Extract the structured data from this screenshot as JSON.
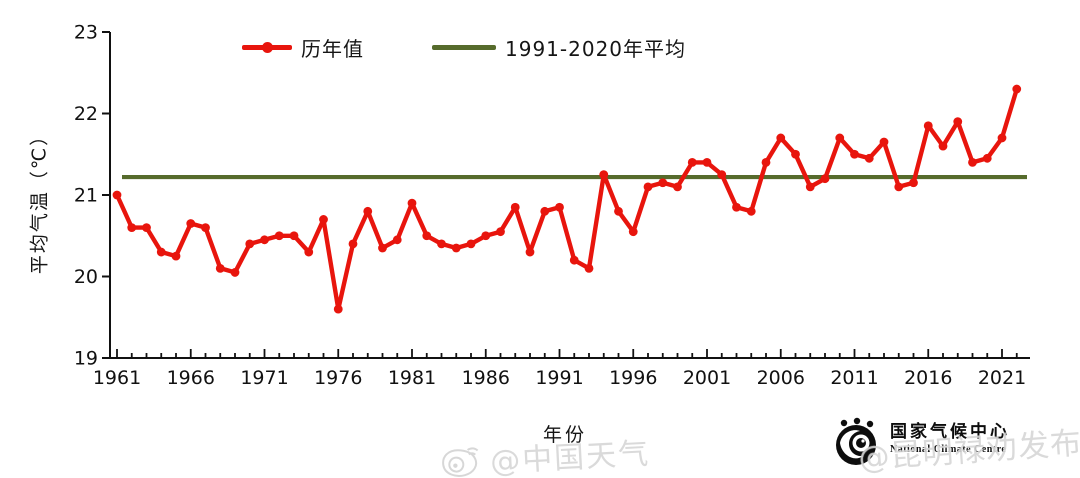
{
  "colors": {
    "red": "#e8150d",
    "green": "#566b2c",
    "axis": "#111111"
  },
  "legend": {
    "series_label": "历年值",
    "ref_label": "1991-2020年平均"
  },
  "watermarks": {
    "center": "@中国天气",
    "right_overlay": "@昆明禄劝发布"
  },
  "branding": {
    "org_cn": "国家气候中心",
    "org_en": "National Climate Centre"
  },
  "chart_data": {
    "type": "line",
    "title": "",
    "xlabel": "年份",
    "ylabel": "平均气温（℃）",
    "ylim": [
      19,
      23
    ],
    "yticks": [
      19,
      20,
      21,
      22,
      23
    ],
    "xtick_labels": [
      "1961",
      "1966",
      "1971",
      "1976",
      "1981",
      "1986",
      "1991",
      "1996",
      "2001",
      "2006",
      "2011",
      "2016",
      "2021"
    ],
    "x_start_year": 1961,
    "x_end_year": 2022,
    "grid": false,
    "legend_position": "top-center",
    "series": [
      {
        "name": "历年值",
        "marker": "circle",
        "values": [
          21.0,
          20.6,
          20.6,
          20.3,
          20.25,
          20.65,
          20.6,
          20.1,
          20.05,
          20.4,
          20.45,
          20.5,
          20.5,
          20.3,
          20.7,
          19.6,
          20.4,
          20.8,
          20.35,
          20.45,
          20.9,
          20.5,
          20.4,
          20.35,
          20.4,
          20.5,
          20.55,
          20.85,
          20.3,
          20.8,
          20.85,
          20.2,
          20.1,
          21.25,
          20.8,
          20.55,
          21.1,
          21.15,
          21.1,
          21.4,
          21.4,
          21.25,
          20.85,
          20.8,
          21.4,
          21.7,
          21.5,
          21.1,
          21.2,
          21.7,
          21.5,
          21.45,
          21.65,
          21.1,
          21.15,
          21.85,
          21.6,
          21.9,
          21.4,
          21.45,
          21.7,
          22.3
        ]
      }
    ],
    "reference_line": {
      "name": "1991-2020年平均",
      "value": 21.22
    }
  }
}
